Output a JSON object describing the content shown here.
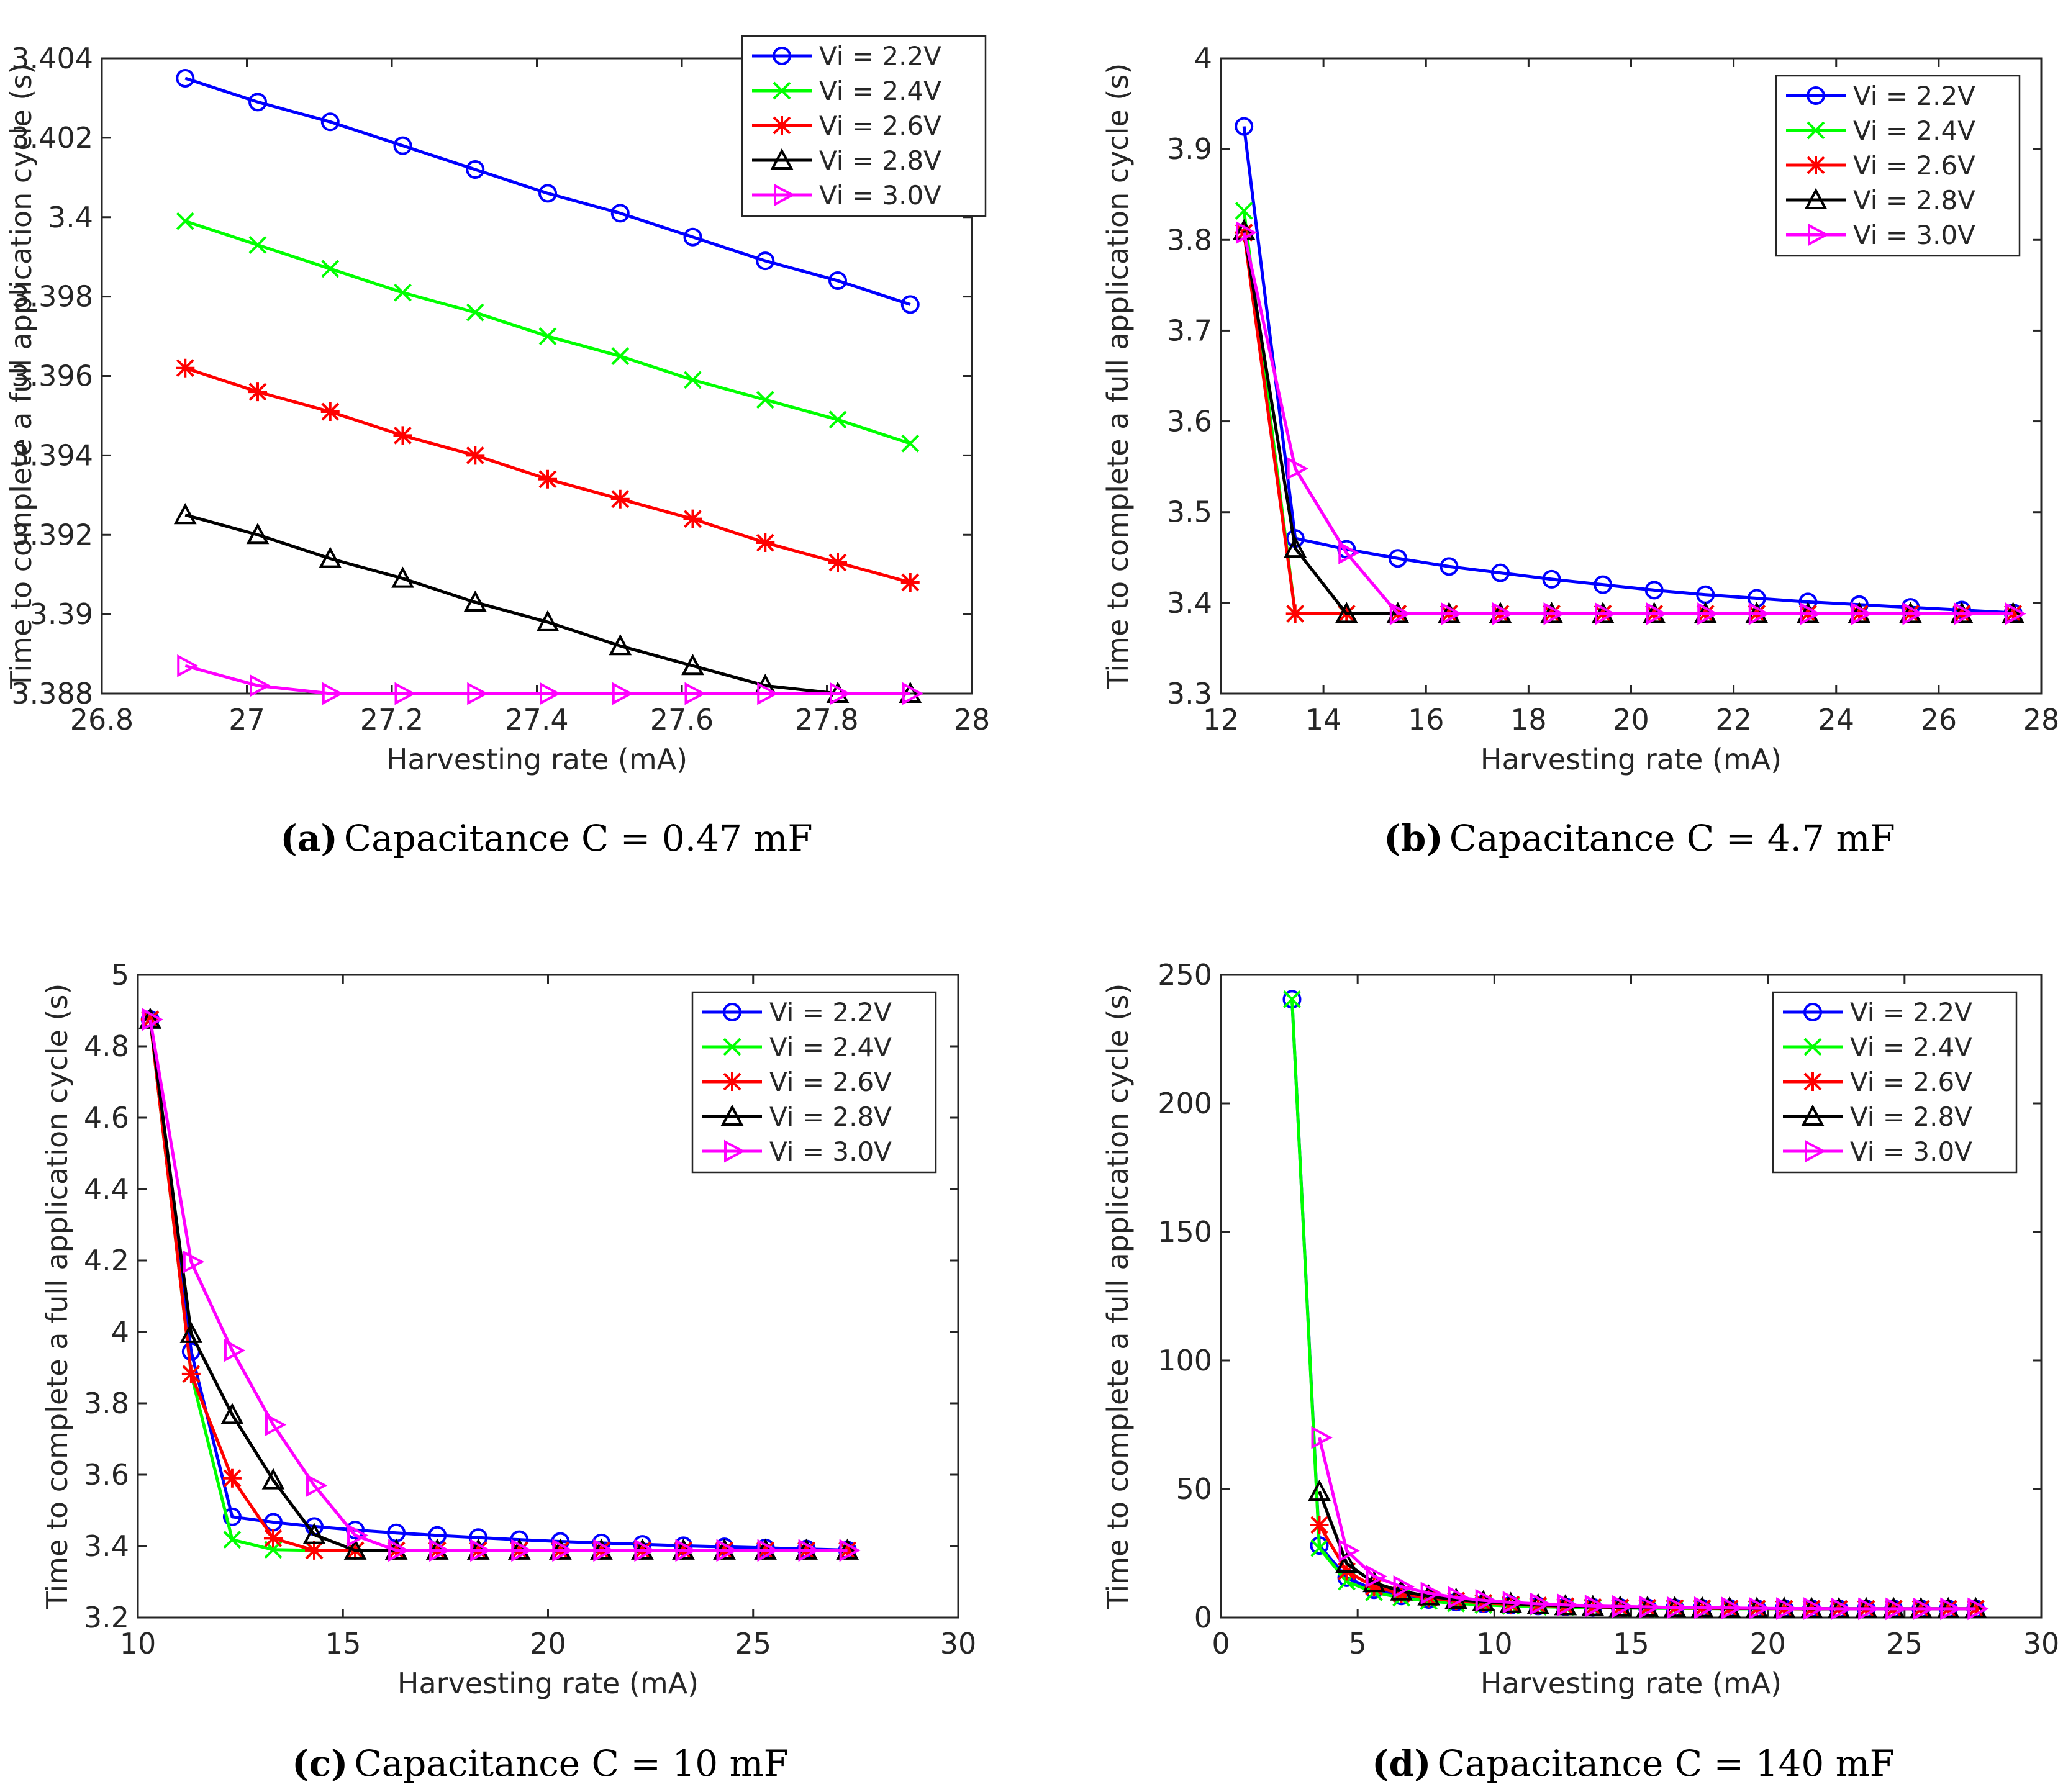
{
  "chart_data": [
    {
      "id": "a",
      "type": "line",
      "caption_letter": "(a)",
      "caption_text": "Capacitance C = 0.47 mF",
      "xlabel": "Harvesting rate (mA)",
      "ylabel": "Time to complete a full application cycle (s)",
      "xlim": [
        26.8,
        28
      ],
      "ylim": [
        3.388,
        3.404
      ],
      "xticks": [
        26.8,
        27,
        27.2,
        27.4,
        27.6,
        27.8,
        28
      ],
      "xtick_labels": [
        "26.8",
        "27",
        "27.2",
        "27.4",
        "27.6",
        "27.8",
        "28"
      ],
      "yticks": [
        3.388,
        3.39,
        3.392,
        3.394,
        3.396,
        3.398,
        3.4,
        3.402,
        3.404
      ],
      "ytick_labels": [
        "3.388",
        "3.39",
        "3.392",
        "3.394",
        "3.396",
        "3.398",
        "3.4",
        "3.402",
        "3.404"
      ],
      "legend_position": "top-right",
      "x": [
        26.915,
        27.015,
        27.115,
        27.215,
        27.315,
        27.415,
        27.515,
        27.615,
        27.715,
        27.815,
        27.915
      ],
      "series": [
        {
          "name": "Vi = 2.2V",
          "color": "#0000ff",
          "marker": "circle",
          "values": [
            3.4035,
            3.4029,
            3.4024,
            3.4018,
            3.4012,
            3.4006,
            3.4001,
            3.3995,
            3.3989,
            3.3984,
            3.3978
          ]
        },
        {
          "name": "Vi = 2.4V",
          "color": "#00ff00",
          "marker": "x",
          "values": [
            3.3999,
            3.3993,
            3.3987,
            3.3981,
            3.3976,
            3.397,
            3.3965,
            3.3959,
            3.3954,
            3.3949,
            3.3943
          ]
        },
        {
          "name": "Vi = 2.6V",
          "color": "#ff0000",
          "marker": "star",
          "values": [
            3.3962,
            3.3956,
            3.3951,
            3.3945,
            3.394,
            3.3934,
            3.3929,
            3.3924,
            3.3918,
            3.3913,
            3.3908
          ]
        },
        {
          "name": "Vi = 2.8V",
          "color": "#000000",
          "marker": "triangle",
          "values": [
            3.3925,
            3.392,
            3.3914,
            3.3909,
            3.3903,
            3.3898,
            3.3892,
            3.3887,
            3.3882,
            3.388,
            3.388
          ]
        },
        {
          "name": "Vi = 3.0V",
          "color": "#ff00ff",
          "marker": "triangle-right",
          "values": [
            3.3887,
            3.3882,
            3.388,
            3.388,
            3.388,
            3.388,
            3.388,
            3.388,
            3.388,
            3.388,
            3.388
          ]
        }
      ]
    },
    {
      "id": "b",
      "type": "line",
      "caption_letter": "(b)",
      "caption_text": "Capacitance C = 4.7 mF",
      "xlabel": "Harvesting rate (mA)",
      "ylabel": "Time to complete a full application cycle (s)",
      "xlim": [
        12,
        28
      ],
      "ylim": [
        3.3,
        4
      ],
      "xticks": [
        12,
        14,
        16,
        18,
        20,
        22,
        24,
        26,
        28
      ],
      "xtick_labels": [
        "12",
        "14",
        "16",
        "18",
        "20",
        "22",
        "24",
        "26",
        "28"
      ],
      "yticks": [
        3.3,
        3.4,
        3.5,
        3.6,
        3.7,
        3.8,
        3.9,
        4
      ],
      "ytick_labels": [
        "3.3",
        "3.4",
        "3.5",
        "3.6",
        "3.7",
        "3.8",
        "3.9",
        "4"
      ],
      "legend_position": "top-right",
      "x": [
        12.45,
        13.45,
        14.45,
        15.45,
        16.45,
        17.45,
        18.45,
        19.45,
        20.45,
        21.45,
        22.45,
        23.45,
        24.45,
        25.45,
        26.45,
        27.45
      ],
      "series": [
        {
          "name": "Vi = 2.2V",
          "color": "#0000ff",
          "marker": "circle",
          "values": [
            3.925,
            3.471,
            3.459,
            3.449,
            3.44,
            3.433,
            3.426,
            3.42,
            3.414,
            3.409,
            3.405,
            3.401,
            3.398,
            3.395,
            3.392,
            3.389
          ]
        },
        {
          "name": "Vi = 2.4V",
          "color": "#00ff00",
          "marker": "x",
          "values": [
            3.832,
            3.388,
            3.388,
            3.388,
            3.388,
            3.388,
            3.388,
            3.388,
            3.388,
            3.388,
            3.388,
            3.388,
            3.388,
            3.388,
            3.388,
            3.388
          ]
        },
        {
          "name": "Vi = 2.6V",
          "color": "#ff0000",
          "marker": "star",
          "values": [
            3.808,
            3.388,
            3.388,
            3.388,
            3.388,
            3.388,
            3.388,
            3.388,
            3.388,
            3.388,
            3.388,
            3.388,
            3.388,
            3.388,
            3.388,
            3.388
          ]
        },
        {
          "name": "Vi = 2.8V",
          "color": "#000000",
          "marker": "triangle",
          "values": [
            3.81,
            3.46,
            3.388,
            3.388,
            3.388,
            3.388,
            3.388,
            3.388,
            3.388,
            3.388,
            3.388,
            3.388,
            3.388,
            3.388,
            3.388,
            3.388
          ]
        },
        {
          "name": "Vi = 3.0V",
          "color": "#ff00ff",
          "marker": "triangle-right",
          "values": [
            3.808,
            3.548,
            3.455,
            3.388,
            3.388,
            3.388,
            3.388,
            3.388,
            3.388,
            3.388,
            3.388,
            3.388,
            3.388,
            3.388,
            3.388,
            3.388
          ]
        }
      ]
    },
    {
      "id": "c",
      "type": "line",
      "caption_letter": "(c)",
      "caption_text": "Capacitance C = 10 mF",
      "xlabel": "Harvesting rate (mA)",
      "ylabel": "Time to complete a full application cycle (s)",
      "xlim": [
        10,
        30
      ],
      "ylim": [
        3.2,
        5
      ],
      "xticks": [
        10,
        15,
        20,
        25,
        30
      ],
      "xtick_labels": [
        "10",
        "15",
        "20",
        "25",
        "30"
      ],
      "yticks": [
        3.2,
        3.4,
        3.6,
        3.8,
        4,
        4.2,
        4.4,
        4.6,
        4.8,
        5
      ],
      "ytick_labels": [
        "3.2",
        "3.4",
        "3.6",
        "3.8",
        "4",
        "4.2",
        "4.4",
        "4.6",
        "4.8",
        "5"
      ],
      "legend_position": "top-right",
      "x": [
        10.3,
        11.3,
        12.3,
        13.3,
        14.3,
        15.3,
        16.3,
        17.3,
        18.3,
        19.3,
        20.3,
        21.3,
        22.3,
        23.3,
        24.3,
        25.3,
        26.3,
        27.3
      ],
      "series": [
        {
          "name": "Vi = 2.2V",
          "color": "#0000ff",
          "marker": "circle",
          "values": [
            4.875,
            3.945,
            3.482,
            3.467,
            3.455,
            3.445,
            3.437,
            3.43,
            3.424,
            3.418,
            3.413,
            3.409,
            3.405,
            3.401,
            3.398,
            3.395,
            3.392,
            3.389
          ]
        },
        {
          "name": "Vi = 2.4V",
          "color": "#00ff00",
          "marker": "x",
          "values": [
            4.875,
            3.882,
            3.418,
            3.39,
            3.388,
            3.388,
            3.388,
            3.388,
            3.388,
            3.388,
            3.388,
            3.388,
            3.388,
            3.388,
            3.388,
            3.388,
            3.388,
            3.388
          ]
        },
        {
          "name": "Vi = 2.6V",
          "color": "#ff0000",
          "marker": "star",
          "values": [
            4.875,
            3.882,
            3.59,
            3.422,
            3.388,
            3.388,
            3.388,
            3.388,
            3.388,
            3.388,
            3.388,
            3.388,
            3.388,
            3.388,
            3.388,
            3.388,
            3.388,
            3.388
          ]
        },
        {
          "name": "Vi = 2.8V",
          "color": "#000000",
          "marker": "triangle",
          "values": [
            4.875,
            3.995,
            3.768,
            3.585,
            3.432,
            3.388,
            3.388,
            3.388,
            3.388,
            3.388,
            3.388,
            3.388,
            3.388,
            3.388,
            3.388,
            3.388,
            3.388,
            3.388
          ]
        },
        {
          "name": "Vi = 3.0V",
          "color": "#ff00ff",
          "marker": "triangle-right",
          "values": [
            4.875,
            4.196,
            3.948,
            3.74,
            3.57,
            3.43,
            3.388,
            3.388,
            3.388,
            3.388,
            3.388,
            3.388,
            3.388,
            3.388,
            3.388,
            3.388,
            3.388,
            3.388
          ]
        }
      ]
    },
    {
      "id": "d",
      "type": "line",
      "caption_letter": "(d)",
      "caption_text": "Capacitance C = 140 mF",
      "xlabel": "Harvesting rate (mA)",
      "ylabel": "Time to complete a full application cycle (s)",
      "xlim": [
        0,
        30
      ],
      "ylim": [
        0,
        250
      ],
      "xticks": [
        0,
        5,
        10,
        15,
        20,
        25,
        30
      ],
      "xtick_labels": [
        "0",
        "5",
        "10",
        "15",
        "20",
        "25",
        "30"
      ],
      "yticks": [
        0,
        50,
        100,
        150,
        200,
        250
      ],
      "ytick_labels": [
        "0",
        "50",
        "100",
        "150",
        "200",
        "250"
      ],
      "legend_position": "top-right",
      "x": [
        2.6,
        3.6,
        4.6,
        5.6,
        6.6,
        7.6,
        8.6,
        9.6,
        10.6,
        11.6,
        12.6,
        13.6,
        14.6,
        15.6,
        16.6,
        17.6,
        18.6,
        19.6,
        20.6,
        21.6,
        22.6,
        23.6,
        24.6,
        25.6,
        26.6,
        27.6
      ],
      "series": [
        {
          "name": "Vi = 2.2V",
          "color": "#0000ff",
          "marker": "circle",
          "values": [
            240.5,
            28.0,
            15.5,
            10.8,
            8.4,
            7.0,
            6.0,
            5.3,
            4.8,
            4.5,
            4.2,
            4.0,
            3.9,
            3.8,
            3.7,
            3.6,
            3.6,
            3.5,
            3.5,
            3.5,
            3.4,
            3.4,
            3.4,
            3.4,
            3.4,
            3.4
          ]
        },
        {
          "name": "Vi = 2.4V",
          "color": "#00ff00",
          "marker": "x",
          "values": [
            240.5,
            27.0,
            14.0,
            9.8,
            7.7,
            6.4,
            5.5,
            4.9,
            4.5,
            4.2,
            4.0,
            3.8,
            3.7,
            3.6,
            3.5,
            3.5,
            3.4,
            3.4,
            3.4,
            3.4,
            3.4,
            3.4,
            3.4,
            3.4,
            3.4,
            3.4
          ]
        },
        {
          "name": "Vi = 2.6V",
          "color": "#ff0000",
          "marker": "star",
          "values": [
            null,
            36.0,
            18.0,
            12.0,
            9.3,
            7.6,
            6.5,
            5.7,
            5.1,
            4.7,
            4.4,
            4.1,
            3.9,
            3.8,
            3.7,
            3.6,
            3.5,
            3.5,
            3.4,
            3.4,
            3.4,
            3.4,
            3.4,
            3.4,
            3.4,
            3.4
          ]
        },
        {
          "name": "Vi = 2.8V",
          "color": "#000000",
          "marker": "triangle",
          "values": [
            null,
            49.0,
            21.0,
            13.5,
            10.2,
            8.3,
            7.0,
            6.1,
            5.4,
            4.9,
            4.5,
            4.2,
            4.0,
            3.9,
            3.8,
            3.7,
            3.6,
            3.5,
            3.5,
            3.4,
            3.4,
            3.4,
            3.4,
            3.4,
            3.4,
            3.4
          ]
        },
        {
          "name": "Vi = 3.0V",
          "color": "#ff00ff",
          "marker": "triangle-right",
          "values": [
            null,
            70.0,
            26.0,
            16.0,
            12.0,
            9.5,
            7.8,
            6.7,
            5.9,
            5.3,
            4.9,
            4.5,
            4.3,
            4.1,
            3.9,
            3.8,
            3.7,
            3.6,
            3.5,
            3.5,
            3.4,
            3.4,
            3.4,
            3.4,
            3.4,
            3.4
          ]
        }
      ]
    }
  ]
}
